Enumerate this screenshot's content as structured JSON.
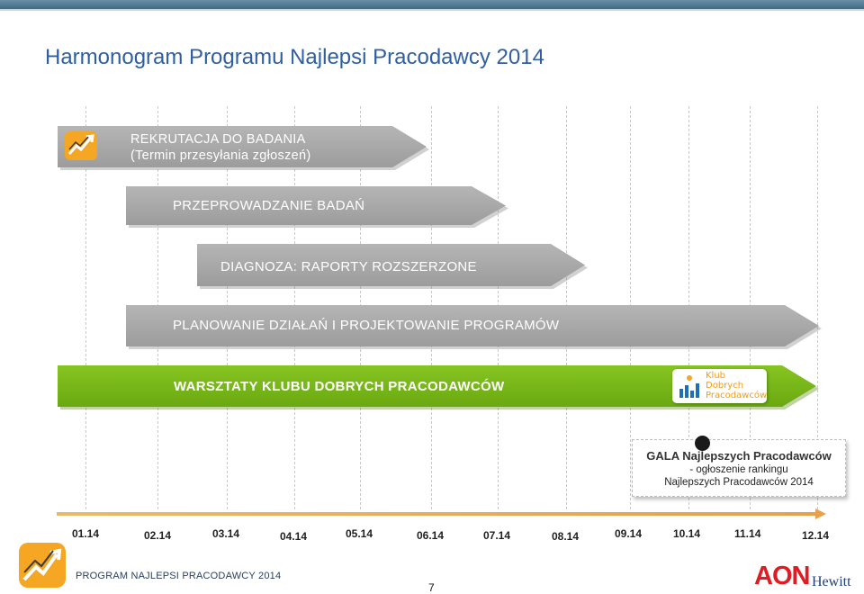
{
  "title": "Harmonogram Programu Najlepsi Pracodawcy 2014",
  "phases": [
    {
      "line1": "REKRUTACJA DO BADANIA",
      "line2": "(Termin przesyłania zgłoszeń)"
    },
    {
      "label": "PRZEPROWADZANIE BADAŃ"
    },
    {
      "label": "DIAGNOZA: RAPORTY ROZSZERZONE"
    },
    {
      "label": "PLANOWANIE DZIAŁAŃ I PROJEKTOWANIE PROGRAMÓW"
    },
    {
      "label": "WARSZTATY KLUBU DOBRYCH PRACODAWCÓW"
    }
  ],
  "klub_logo": {
    "line1": "Klub",
    "line2": "Dobrych",
    "line3": "Pracodawców"
  },
  "gala": {
    "title": "GALA Najlepszych Pracodawców",
    "line2": "- ogłoszenie rankingu",
    "line3": "Najlepszych Pracodawców 2014"
  },
  "months": [
    "01.14",
    "02.14",
    "03.14",
    "04.14",
    "05.14",
    "06.14",
    "07.14",
    "08.14",
    "09.14",
    "10.14",
    "11.14",
    "12.14"
  ],
  "footer": {
    "program": "PROGRAM NAJLEPSI PRACODAWCY 2014",
    "page": "7",
    "brand_main": "AON",
    "brand_sub": "Hewitt"
  },
  "colors": {
    "phase_gray": "#a8a8a8",
    "phase_green": "#76b51b",
    "title_blue": "#2f5fa0",
    "axis_orange": "#e8a04a",
    "brand_red": "#e11b22"
  }
}
